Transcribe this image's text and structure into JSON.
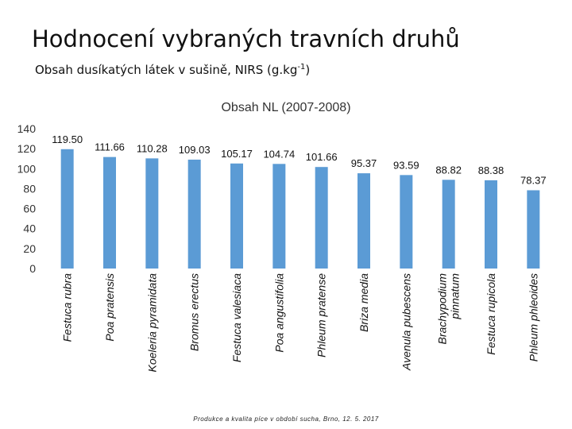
{
  "slide": {
    "title": "Hodnocení vybraných travních druhů",
    "subtitle_main": "Obsah dusíkatých látek v sušině, NIRS (g.kg",
    "subtitle_sup": "-1",
    "subtitle_end": ")",
    "footer": "Produkce a kvalita píce v období sucha, Brno, 12. 5. 2017"
  },
  "colors": {
    "bar": "#5B9BD5",
    "text": "#111111",
    "grid": "#D9D9D9"
  },
  "chart_data": {
    "type": "bar",
    "title": "Obsah NL (2007-2008)",
    "xlabel": "",
    "ylabel": "",
    "ylim": [
      0,
      140
    ],
    "yticks": [
      0,
      20,
      40,
      60,
      80,
      100,
      120,
      140
    ],
    "grid": false,
    "legend": "none",
    "categories": [
      "Festuca rubra",
      "Poa pratensis",
      "Koeleria pyramidata",
      "Bromus erectus",
      "Festuca valesiaca",
      "Poa angustifolia",
      "Phleum pratense",
      "Briza media",
      "Avenula pubescens",
      "Brachypodium pinnatum",
      "Festuca rupicola",
      "Phleum phleoides"
    ],
    "category_lines": [
      [
        "Festuca rubra"
      ],
      [
        "Poa pratensis"
      ],
      [
        "Koeleria pyramidata"
      ],
      [
        "Bromus erectus"
      ],
      [
        "Festuca valesiaca"
      ],
      [
        "Poa angustifolia"
      ],
      [
        "Phleum pratense"
      ],
      [
        "Briza media"
      ],
      [
        "Avenula pubescens"
      ],
      [
        "Brachypodium",
        "pinnatum"
      ],
      [
        "Festuca rupicola"
      ],
      [
        "Phleum phleoides"
      ]
    ],
    "values": [
      119.5,
      111.66,
      110.28,
      109.03,
      105.17,
      104.74,
      101.66,
      95.37,
      93.59,
      88.82,
      88.38,
      78.37
    ],
    "data_labels": [
      "119.50",
      "111.66",
      "110.28",
      "109.03",
      "105.17",
      "104.74",
      "101.66",
      "95.37",
      "93.59",
      "88.82",
      "88.38",
      "78.37"
    ]
  }
}
